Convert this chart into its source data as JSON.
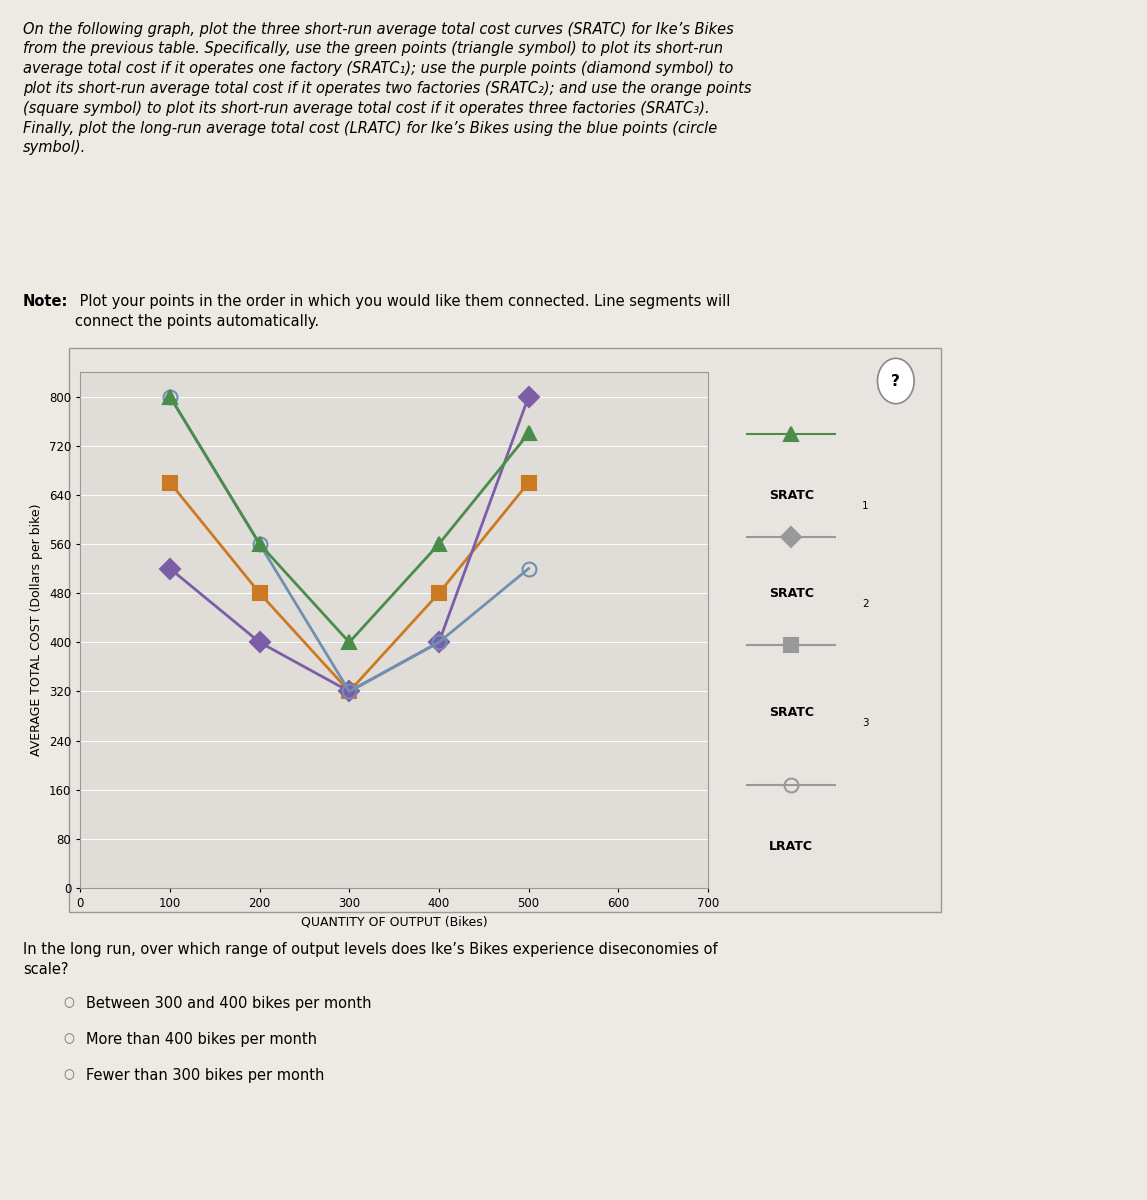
{
  "sratc1": {
    "x": [
      100,
      200,
      300,
      400,
      500
    ],
    "y": [
      800,
      560,
      400,
      560,
      740
    ],
    "color": "#4a8c4a",
    "marker": "^",
    "label": "SRATC",
    "label_sub": "1",
    "markersize": 10,
    "linewidth": 2.0,
    "legend_color": "#888888"
  },
  "sratc2": {
    "x": [
      100,
      200,
      300,
      400,
      500
    ],
    "y": [
      520,
      400,
      320,
      400,
      800
    ],
    "color": "#7b5ea7",
    "marker": "D",
    "label": "SRATC",
    "label_sub": "2",
    "markersize": 10,
    "linewidth": 2.0,
    "legend_color": "#888888"
  },
  "sratc3": {
    "x": [
      100,
      200,
      300,
      400,
      500
    ],
    "y": [
      660,
      480,
      320,
      480,
      660
    ],
    "color": "#cc7a22",
    "marker": "s",
    "label": "SRATC",
    "label_sub": "3",
    "markersize": 10,
    "linewidth": 2.0,
    "legend_color": "#888888"
  },
  "lratc": {
    "x": [
      100,
      200,
      300,
      400,
      500
    ],
    "y": [
      800,
      560,
      320,
      400,
      520
    ],
    "color": "#7090b0",
    "marker": "o",
    "label": "LRATC",
    "label_sub": "",
    "markersize": 10,
    "linewidth": 2.0,
    "legend_color": "#888888"
  },
  "xlabel": "QUANTITY OF OUTPUT (Bikes)",
  "ylabel": "AVERAGE TOTAL COST (Dollars per bike)",
  "xlim": [
    0,
    700
  ],
  "ylim": [
    0,
    840
  ],
  "xticks": [
    0,
    100,
    200,
    300,
    400,
    500,
    600,
    700
  ],
  "yticks": [
    0,
    80,
    160,
    240,
    320,
    400,
    480,
    560,
    640,
    720,
    800
  ],
  "plot_bg_color": "#e0ddd8",
  "fig_bg_color": "#ede9e3",
  "panel_bg_color": "#e8e5e0",
  "title_text": "On the following graph, plot the three short-run average total cost curves (SRATC) for Ike’s Bikes\nfrom the previous table. Specifically, use the green points (triangle symbol) to plot its short-run\naverage total cost if it operates one factory (SRATC₁); use the purple points (diamond symbol) to\nplot its short-run average total cost if it operates two factories (SRATC₂); and use the orange points\n(square symbol) to plot its short-run average total cost if it operates three factories (SRATC₃).\nFinally, plot the long-run average total cost (LRATC) for Ike’s Bikes using the blue points (circle\nsymbol).",
  "note_bold": "Note:",
  "note_rest": " Plot your points in the order in which you would like them connected. Line segments will\nconnect the points automatically.",
  "question_text": "In the long run, over which range of output levels does Ike’s Bikes experience diseconomies of\nscale?",
  "options": [
    "Between 300 and 400 bikes per month",
    "More than 400 bikes per month",
    "Fewer than 300 bikes per month"
  ]
}
